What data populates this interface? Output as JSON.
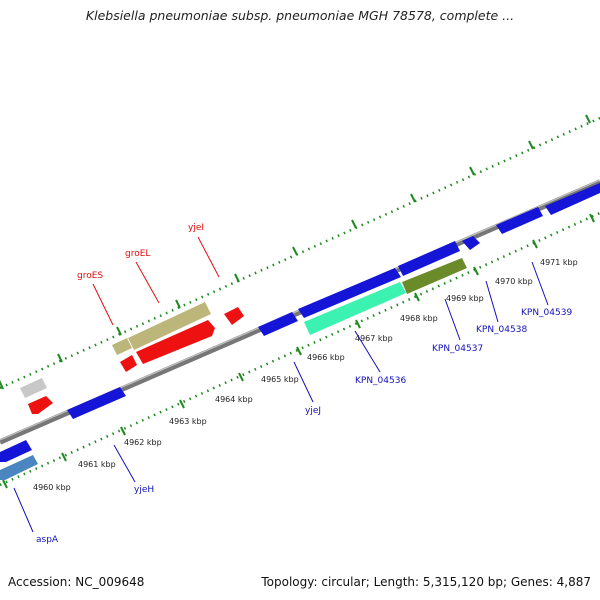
{
  "title": "Klebsiella pneumoniae subsp. pneumoniae MGH 78578, complete ...",
  "footer": {
    "accession": "Accession: NC_009648",
    "topology": "Topology: circular; Length: 5,315,120 bp; Genes: 4,887"
  },
  "colors": {
    "backbone": "#8a8a8a",
    "tick": "#1f8a1f",
    "gene_blue": "#1515d8",
    "gene_red": "#ee1111",
    "gene_khaki": "#bcb67a",
    "gene_olive": "#6b8a2a",
    "gene_cyan": "#3cf2b0",
    "gene_steel": "#4a86c0",
    "gene_grey": "#c8c8c8",
    "label_forward": "#dd1111",
    "label_reverse": "#1111bb"
  },
  "kbp_labels": [
    "4960 kbp",
    "4961 kbp",
    "4962 kbp",
    "4963 kbp",
    "4964 kbp",
    "4965 kbp",
    "4966 kbp",
    "4967 kbp",
    "4968 kbp",
    "4969 kbp",
    "4970 kbp",
    "4971 kbp"
  ],
  "gene_labels_forward": [
    "groES",
    "groEL",
    "yjeI"
  ],
  "gene_labels_reverse": [
    "aspA",
    "yjeH",
    "yjeJ",
    "KPN_04536",
    "KPN_04537",
    "KPN_04538",
    "KPN_04539"
  ]
}
